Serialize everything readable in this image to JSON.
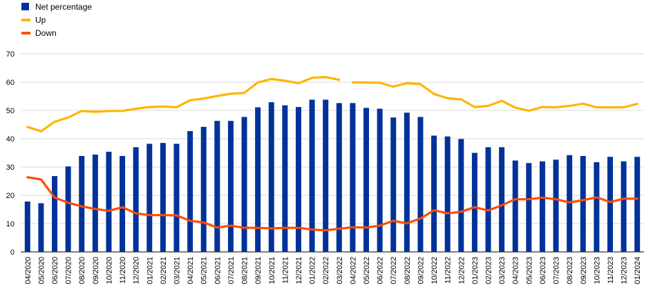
{
  "chart_data": {
    "type": "bar",
    "title": "",
    "xlabel": "",
    "ylabel": "",
    "ylim": [
      0,
      70
    ],
    "yticks": [
      0,
      10,
      20,
      30,
      40,
      50,
      60,
      70
    ],
    "grid": "horizontal",
    "legend_position": "top-left",
    "categories": [
      "04/2020",
      "05/2020",
      "06/2020",
      "07/2020",
      "08/2020",
      "09/2020",
      "10/2020",
      "11/2020",
      "12/2020",
      "01/2021",
      "02/2021",
      "03/2021",
      "04/2021",
      "05/2021",
      "06/2021",
      "07/2021",
      "08/2021",
      "09/2021",
      "10/2021",
      "11/2021",
      "12/2021",
      "01/2022",
      "02/2022",
      "03/2022",
      "04/2022",
      "05/2022",
      "06/2022",
      "07/2022",
      "08/2022",
      "09/2022",
      "10/2022",
      "11/2022",
      "12/2022",
      "01/2023",
      "02/2023",
      "03/2023",
      "04/2023",
      "05/2023",
      "06/2023",
      "07/2023",
      "08/2023",
      "09/2023",
      "10/2023",
      "11/2023",
      "12/2023",
      "01/2024"
    ],
    "series": [
      {
        "name": "Net percentage",
        "type": "bar",
        "color": "#003299",
        "values": [
          17.8,
          17.2,
          26.8,
          30.2,
          33.9,
          34.4,
          35.4,
          33.9,
          37.0,
          38.2,
          38.5,
          38.2,
          42.7,
          44.2,
          46.3,
          46.3,
          47.7,
          51.1,
          52.9,
          51.8,
          51.2,
          53.8,
          53.8,
          52.6,
          52.6,
          50.9,
          50.6,
          47.5,
          49.2,
          47.7,
          41.1,
          40.8,
          39.9,
          35.0,
          37.0,
          37.0,
          32.3,
          31.4,
          32.0,
          32.6,
          34.2,
          33.9,
          31.7,
          33.6,
          32.0,
          33.6
        ]
      },
      {
        "name": "Up",
        "type": "line",
        "color": "#FFB400",
        "values": [
          44.2,
          42.6,
          46.0,
          47.5,
          49.8,
          49.5,
          49.8,
          49.8,
          50.6,
          51.2,
          51.4,
          51.1,
          53.6,
          54.2,
          55.1,
          55.9,
          56.2,
          59.9,
          61.1,
          60.5,
          59.6,
          61.5,
          61.8,
          60.8,
          59.9,
          null,
          59.8,
          58.4,
          59.6,
          59.3,
          55.8,
          54.3,
          53.9,
          51.2,
          51.6,
          53.4,
          51.0,
          49.9,
          51.2,
          51.1,
          51.6,
          52.4,
          51.1,
          51.1,
          51.1,
          52.3
        ],
        "segments": [
          [
            0,
            23
          ],
          [
            24,
            45
          ]
        ],
        "gap_note_removed": true
      },
      {
        "name": "Down",
        "type": "line",
        "color": "#FF4B00",
        "values": [
          26.4,
          25.6,
          19.2,
          17.4,
          16.1,
          15.2,
          14.5,
          15.8,
          13.6,
          13.0,
          13.0,
          12.9,
          11.0,
          10.4,
          8.6,
          9.3,
          8.5,
          8.5,
          8.3,
          8.5,
          8.5,
          7.9,
          7.6,
          8.2,
          8.7,
          8.6,
          9.3,
          11.0,
          10.1,
          11.8,
          14.7,
          13.6,
          14.2,
          15.8,
          14.6,
          16.5,
          18.6,
          18.6,
          19.2,
          18.6,
          17.5,
          18.3,
          19.3,
          17.6,
          18.8,
          18.8
        ]
      }
    ]
  },
  "legend": {
    "items": [
      {
        "label": "Net percentage",
        "color": "#003299",
        "marker": "square"
      },
      {
        "label": "Up",
        "color": "#FFB400",
        "marker": "line"
      },
      {
        "label": "Down",
        "color": "#FF4B00",
        "marker": "line"
      }
    ]
  }
}
